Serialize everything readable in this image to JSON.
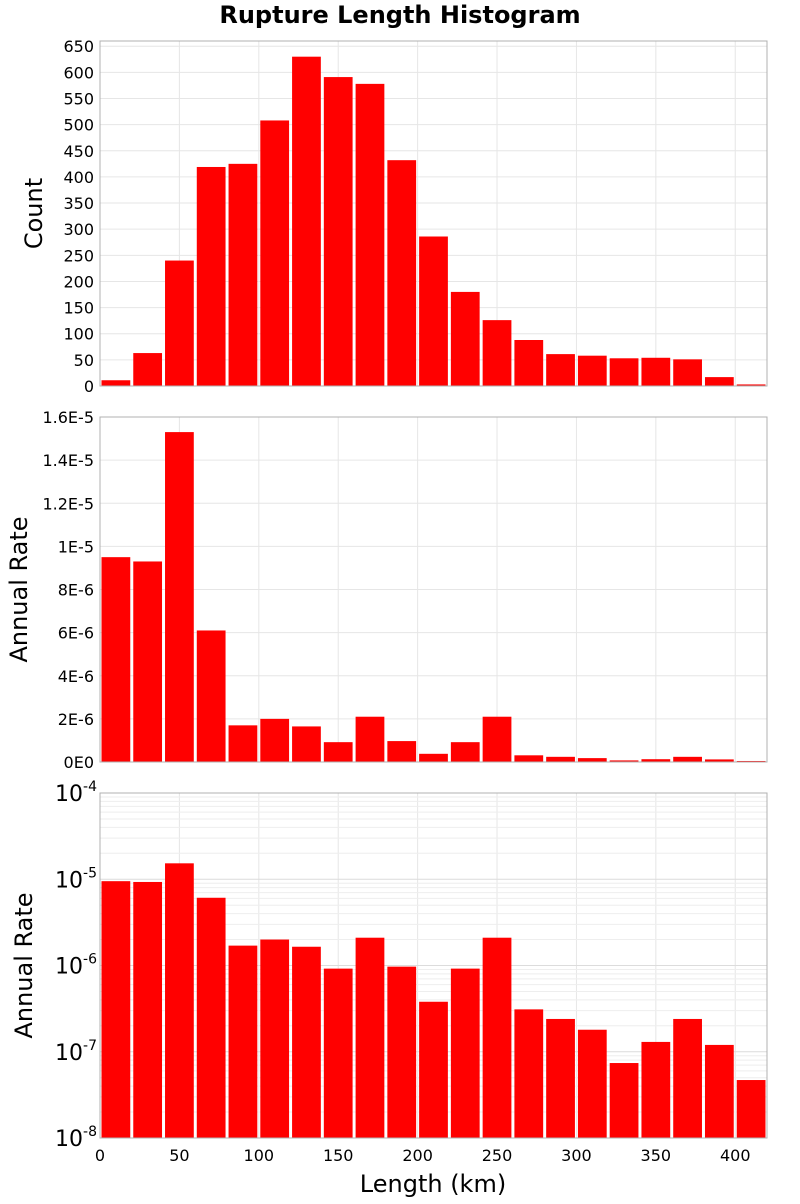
{
  "chart_data": {
    "title": "Rupture Length Histogram",
    "xlabel": "Length (km)",
    "xlim": [
      0,
      420
    ],
    "bin_width": 20,
    "grid": true,
    "bar_color": "#ff0000",
    "x_tick_labels": [
      "0",
      "50",
      "100",
      "150",
      "200",
      "250",
      "300",
      "350",
      "400"
    ],
    "x_ticks": [
      0,
      50,
      100,
      150,
      200,
      250,
      300,
      350,
      400
    ],
    "bin_centers": [
      10,
      30,
      50,
      70,
      90,
      110,
      130,
      150,
      170,
      190,
      210,
      230,
      250,
      270,
      290,
      310,
      330,
      350,
      370,
      390,
      410
    ],
    "panels": [
      {
        "type": "bar",
        "ylabel": "Count",
        "yscale": "linear",
        "ylim": [
          0,
          660
        ],
        "y_ticks": [
          0,
          50,
          100,
          150,
          200,
          250,
          300,
          350,
          400,
          450,
          500,
          550,
          600,
          650
        ],
        "y_tick_labels": [
          "0",
          "50",
          "100",
          "150",
          "200",
          "250",
          "300",
          "350",
          "400",
          "450",
          "500",
          "550",
          "600",
          "650"
        ],
        "values": [
          11,
          63,
          240,
          419,
          425,
          508,
          630,
          591,
          578,
          432,
          286,
          180,
          126,
          88,
          61,
          58,
          53,
          54,
          51,
          17,
          3
        ]
      },
      {
        "type": "bar",
        "ylabel": "Annual Rate",
        "yscale": "linear",
        "ylim": [
          0,
          1.6e-05
        ],
        "y_ticks": [
          0,
          2e-06,
          4e-06,
          6e-06,
          8e-06,
          1e-05,
          1.2e-05,
          1.4e-05,
          1.6e-05
        ],
        "y_tick_labels": [
          "0E0",
          "2E-6",
          "4E-6",
          "6E-6",
          "8E-6",
          "1E-5",
          "1.2E-5",
          "1.4E-5",
          "1.6E-5"
        ],
        "values": [
          9.5e-06,
          9.3e-06,
          1.53e-05,
          6.1e-06,
          1.7e-06,
          2e-06,
          1.65e-06,
          9.2e-07,
          2.1e-06,
          9.7e-07,
          3.8e-07,
          9.2e-07,
          2.1e-06,
          3.1e-07,
          2.4e-07,
          1.8e-07,
          7.4e-08,
          1.3e-07,
          2.4e-07,
          1.2e-07,
          4.7e-08
        ]
      },
      {
        "type": "bar",
        "ylabel": "Annual Rate",
        "yscale": "log",
        "ylim": [
          1e-08,
          0.0001
        ],
        "y_ticks": [
          1e-08,
          1e-07,
          1e-06,
          1e-05,
          0.0001
        ],
        "y_tick_labels": [
          {
            "base": "10",
            "exp": "-8"
          },
          {
            "base": "10",
            "exp": "-7"
          },
          {
            "base": "10",
            "exp": "-6"
          },
          {
            "base": "10",
            "exp": "-5"
          },
          {
            "base": "10",
            "exp": "-4"
          }
        ],
        "values": [
          9.5e-06,
          9.3e-06,
          1.53e-05,
          6.1e-06,
          1.7e-06,
          2e-06,
          1.65e-06,
          9.2e-07,
          2.1e-06,
          9.7e-07,
          3.8e-07,
          9.2e-07,
          2.1e-06,
          3.1e-07,
          2.4e-07,
          1.8e-07,
          7.4e-08,
          1.3e-07,
          2.4e-07,
          1.2e-07,
          4.7e-08
        ]
      }
    ]
  }
}
